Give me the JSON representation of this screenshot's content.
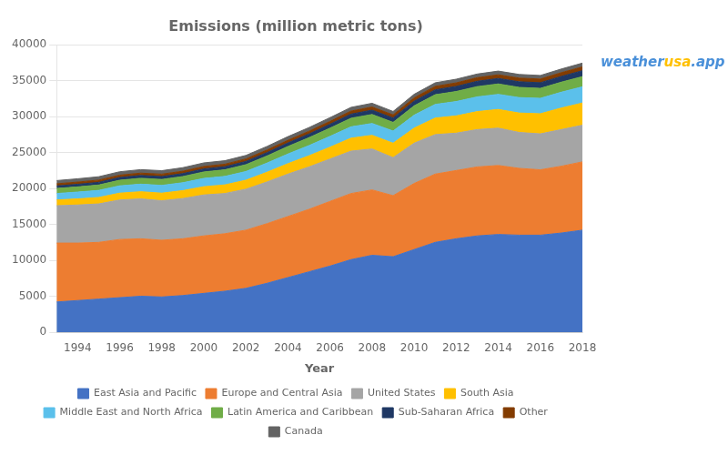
{
  "chart_data": {
    "type": "area",
    "stacked": true,
    "title": "Emissions (million metric tons)",
    "xlabel": "Year",
    "x": [
      1993,
      1994,
      1995,
      1996,
      1997,
      1998,
      1999,
      2000,
      2001,
      2002,
      2003,
      2004,
      2005,
      2006,
      2007,
      2008,
      2009,
      2010,
      2011,
      2012,
      2013,
      2014,
      2015,
      2016,
      2017,
      2018
    ],
    "series": [
      {
        "name": "East Asia and Pacific",
        "color": "#4472C4",
        "values": [
          4200,
          4400,
          4600,
          4800,
          5000,
          4900,
          5100,
          5400,
          5700,
          6100,
          6800,
          7600,
          8400,
          9200,
          10100,
          10700,
          10500,
          11500,
          12500,
          13000,
          13400,
          13600,
          13500,
          13500,
          13800,
          14200
        ]
      },
      {
        "name": "Europe and Central Asia",
        "color": "#ED7D31",
        "values": [
          8200,
          8000,
          7900,
          8100,
          8000,
          7900,
          7900,
          8000,
          8000,
          8100,
          8300,
          8500,
          8700,
          9000,
          9200,
          9100,
          8500,
          9200,
          9500,
          9500,
          9600,
          9600,
          9300,
          9100,
          9300,
          9500
        ]
      },
      {
        "name": "United States",
        "color": "#A5A5A5",
        "values": [
          5200,
          5300,
          5350,
          5500,
          5550,
          5500,
          5600,
          5700,
          5600,
          5700,
          5800,
          5900,
          5900,
          5900,
          5900,
          5700,
          5300,
          5600,
          5500,
          5200,
          5200,
          5200,
          5000,
          5000,
          5100,
          5100
        ]
      },
      {
        "name": "South Asia",
        "color": "#FFC000",
        "values": [
          800,
          850,
          900,
          950,
          1000,
          1050,
          1100,
          1150,
          1200,
          1250,
          1350,
          1450,
          1550,
          1650,
          1800,
          1900,
          2000,
          2100,
          2300,
          2400,
          2500,
          2600,
          2700,
          2800,
          3000,
          3100
        ]
      },
      {
        "name": "Middle East and North Africa",
        "color": "#5BC0EB",
        "values": [
          900,
          950,
          980,
          1020,
          1050,
          1080,
          1100,
          1150,
          1180,
          1210,
          1280,
          1350,
          1420,
          1500,
          1580,
          1650,
          1700,
          1800,
          1900,
          2000,
          2050,
          2100,
          2150,
          2150,
          2200,
          2250
        ]
      },
      {
        "name": "Latin America and Caribbean",
        "color": "#70AD47",
        "values": [
          700,
          720,
          750,
          780,
          820,
          830,
          860,
          900,
          920,
          950,
          990,
          1050,
          1100,
          1150,
          1200,
          1250,
          1200,
          1300,
          1350,
          1400,
          1430,
          1450,
          1420,
          1380,
          1400,
          1420
        ]
      },
      {
        "name": "Sub-Saharan Africa",
        "color": "#1F3864",
        "values": [
          350,
          360,
          370,
          380,
          390,
          400,
          410,
          420,
          430,
          450,
          470,
          490,
          510,
          540,
          570,
          600,
          610,
          650,
          680,
          710,
          740,
          760,
          780,
          790,
          800,
          820
        ]
      },
      {
        "name": "Other",
        "color": "#833C00",
        "values": [
          300,
          310,
          315,
          320,
          325,
          330,
          335,
          340,
          345,
          350,
          360,
          370,
          380,
          400,
          420,
          440,
          430,
          460,
          480,
          490,
          500,
          510,
          510,
          510,
          520,
          530
        ]
      },
      {
        "name": "Canada",
        "color": "#636363",
        "values": [
          450,
          460,
          470,
          480,
          490,
          490,
          490,
          500,
          490,
          490,
          500,
          510,
          520,
          520,
          520,
          520,
          480,
          500,
          500,
          510,
          510,
          520,
          510,
          500,
          510,
          530
        ]
      }
    ],
    "xlim": [
      1993,
      2018
    ],
    "xticks": [
      1994,
      1996,
      1998,
      2000,
      2002,
      2004,
      2006,
      2008,
      2010,
      2012,
      2014,
      2016,
      2018
    ],
    "ylim": [
      0,
      40000
    ],
    "yticks": [
      0,
      5000,
      10000,
      15000,
      20000,
      25000,
      30000,
      35000,
      40000
    ],
    "grid": true,
    "legend": "bottom",
    "annotations": [
      {
        "text": "weather",
        "color": "#4a90d9"
      },
      {
        "text": "usa",
        "color": "#FFC000"
      },
      {
        "text": ".app",
        "color": "#4a90d9"
      }
    ]
  }
}
